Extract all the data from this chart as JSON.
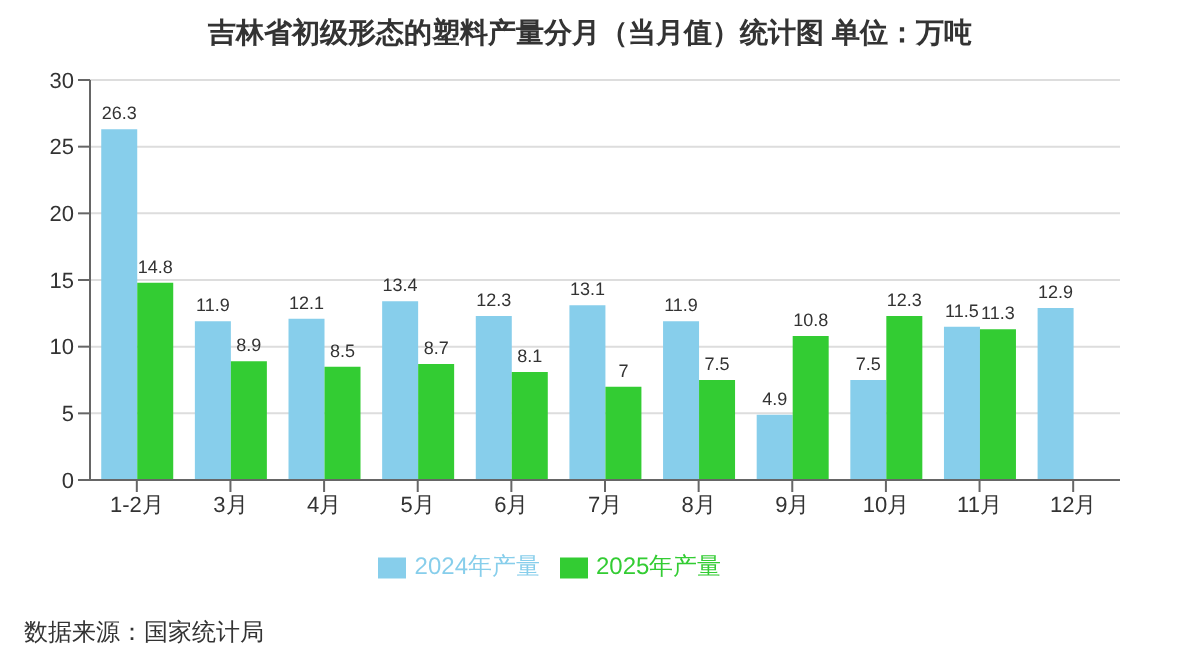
{
  "chart_data": {
    "type": "bar",
    "title": "吉林省初级形态的塑料产量分月（当月值）统计图 单位：万吨",
    "categories": [
      "1-2月",
      "3月",
      "4月",
      "5月",
      "6月",
      "7月",
      "8月",
      "9月",
      "10月",
      "11月",
      "12月"
    ],
    "series": [
      {
        "name": "2024年产量",
        "color": "#87ceeb",
        "values": [
          26.3,
          11.9,
          12.1,
          13.4,
          12.3,
          13.1,
          11.9,
          4.9,
          7.5,
          11.5,
          12.9
        ]
      },
      {
        "name": "2025年产量",
        "color": "#33cc33",
        "values": [
          14.8,
          8.9,
          8.5,
          8.7,
          8.1,
          7,
          7.5,
          10.8,
          12.3,
          11.3,
          null
        ]
      }
    ],
    "ylim": [
      0,
      30
    ],
    "yticks": [
      0,
      5,
      10,
      15,
      20,
      25,
      30
    ],
    "grid": "y",
    "legend": "bottom",
    "data_labels": true,
    "annotations": [
      "数据来源：国家统计局"
    ]
  }
}
